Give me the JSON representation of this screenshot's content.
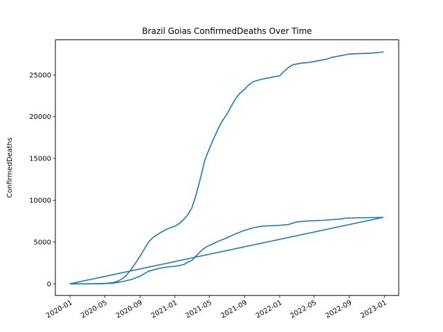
{
  "chart_data": {
    "type": "line",
    "title": "Brazil Goias ConfirmedDeaths Over Time",
    "xlabel": "",
    "ylabel": "ConfirmedDeaths",
    "xlim": [
      "2019-11-11",
      "2023-02-20"
    ],
    "ylim": [
      -1400,
      29200
    ],
    "grid": false,
    "legend": "none",
    "x_ticks": [
      "2020-01",
      "2020-05",
      "2020-09",
      "2021-01",
      "2021-05",
      "2021-09",
      "2022-01",
      "2022-05",
      "2022-09",
      "2023-01"
    ],
    "y_ticks": [
      0,
      5000,
      10000,
      15000,
      20000,
      25000
    ],
    "y_tick_labels": [
      "0",
      "5000",
      "10000",
      "15000",
      "20000",
      "25000"
    ],
    "colors": {
      "line": "#1f77b4"
    },
    "series": [
      {
        "color": "#1f77b4",
        "points": [
          [
            "2020-01-01",
            0
          ],
          [
            "2020-03-15",
            0
          ],
          [
            "2020-04-20",
            20
          ],
          [
            "2020-05-15",
            80
          ],
          [
            "2020-06-01",
            160
          ],
          [
            "2020-06-15",
            300
          ],
          [
            "2020-07-01",
            600
          ],
          [
            "2020-07-15",
            1000
          ],
          [
            "2020-08-01",
            1700
          ],
          [
            "2020-08-15",
            2400
          ],
          [
            "2020-09-01",
            3300
          ],
          [
            "2020-09-15",
            4100
          ],
          [
            "2020-10-01",
            5000
          ],
          [
            "2020-10-15",
            5500
          ],
          [
            "2020-11-01",
            5900
          ],
          [
            "2020-11-15",
            6200
          ],
          [
            "2020-12-01",
            6500
          ],
          [
            "2020-12-15",
            6700
          ],
          [
            "2021-01-01",
            6900
          ],
          [
            "2021-01-15",
            7200
          ],
          [
            "2021-02-01",
            7700
          ],
          [
            "2021-02-15",
            8300
          ],
          [
            "2021-03-01",
            9100
          ],
          [
            "2021-03-15",
            10600
          ],
          [
            "2021-04-01",
            12800
          ],
          [
            "2021-04-15",
            14800
          ],
          [
            "2021-05-01",
            16200
          ],
          [
            "2021-05-15",
            17300
          ],
          [
            "2021-06-01",
            18600
          ],
          [
            "2021-06-15",
            19500
          ],
          [
            "2021-07-01",
            20300
          ],
          [
            "2021-07-15",
            21200
          ],
          [
            "2021-08-01",
            22200
          ],
          [
            "2021-08-15",
            22800
          ],
          [
            "2021-09-01",
            23300
          ],
          [
            "2021-09-15",
            23800
          ],
          [
            "2021-10-01",
            24200
          ],
          [
            "2021-11-01",
            24500
          ],
          [
            "2021-12-01",
            24700
          ],
          [
            "2022-01-01",
            24900
          ],
          [
            "2022-01-15",
            25400
          ],
          [
            "2022-02-01",
            25900
          ],
          [
            "2022-02-15",
            26200
          ],
          [
            "2022-03-15",
            26400
          ],
          [
            "2022-04-15",
            26500
          ],
          [
            "2022-05-15",
            26700
          ],
          [
            "2022-06-15",
            26900
          ],
          [
            "2022-07-01",
            27100
          ],
          [
            "2022-08-01",
            27300
          ],
          [
            "2022-09-01",
            27500
          ],
          [
            "2022-10-01",
            27550
          ],
          [
            "2022-11-15",
            27600
          ],
          [
            "2022-12-28",
            27750
          ]
        ]
      },
      {
        "color": "#1f77b4",
        "points": [
          [
            "2020-01-01",
            0
          ],
          [
            "2020-03-15",
            0
          ],
          [
            "2020-05-01",
            30
          ],
          [
            "2020-06-01",
            80
          ],
          [
            "2020-07-01",
            250
          ],
          [
            "2020-08-01",
            500
          ],
          [
            "2020-09-01",
            900
          ],
          [
            "2020-09-15",
            1200
          ],
          [
            "2020-10-01",
            1500
          ],
          [
            "2020-11-01",
            1800
          ],
          [
            "2020-12-01",
            2000
          ],
          [
            "2021-01-01",
            2100
          ],
          [
            "2021-02-01",
            2300
          ],
          [
            "2021-02-15",
            2600
          ],
          [
            "2021-03-01",
            2800
          ],
          [
            "2021-03-15",
            3300
          ],
          [
            "2021-04-01",
            3900
          ],
          [
            "2021-04-15",
            4300
          ],
          [
            "2021-05-01",
            4600
          ],
          [
            "2021-05-15",
            4800
          ],
          [
            "2021-06-01",
            5100
          ],
          [
            "2021-07-01",
            5500
          ],
          [
            "2021-08-01",
            6000
          ],
          [
            "2021-09-01",
            6400
          ],
          [
            "2021-10-01",
            6700
          ],
          [
            "2021-11-01",
            6900
          ],
          [
            "2022-01-01",
            7000
          ],
          [
            "2022-02-01",
            7100
          ],
          [
            "2022-03-01",
            7400
          ],
          [
            "2022-04-01",
            7500
          ],
          [
            "2022-06-01",
            7600
          ],
          [
            "2022-08-01",
            7750
          ],
          [
            "2022-08-15",
            7850
          ],
          [
            "2022-10-01",
            7900
          ],
          [
            "2022-12-28",
            7950
          ],
          [
            "2020-01-01",
            0
          ]
        ]
      }
    ]
  }
}
